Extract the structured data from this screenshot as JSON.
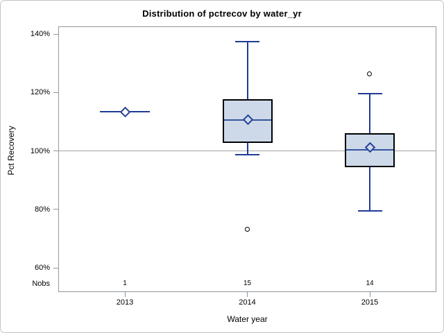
{
  "chart_data": {
    "type": "box",
    "title": "Distribution of pctrecov by water_yr",
    "xlabel": "Water year",
    "ylabel": "Pct Recovery",
    "nobs_label": "Nobs",
    "y_ticks": [
      140,
      120,
      100,
      80,
      60
    ],
    "y_tick_labels": [
      "140%",
      "120%",
      "100%",
      "80%",
      "60%"
    ],
    "ylim": [
      55,
      146
    ],
    "reference_line": 100,
    "categories": [
      "2013",
      "2014",
      "2015"
    ],
    "groups": [
      {
        "label": "2013",
        "nobs": "1",
        "type": "single",
        "value": 113.3,
        "mean": 113.3,
        "outliers": []
      },
      {
        "label": "2014",
        "nobs": "15",
        "type": "box",
        "whisker_low": 98.6,
        "q1": 102.7,
        "median": 110.6,
        "mean": 110.9,
        "q3": 117.7,
        "whisker_high": 137.3,
        "outliers": [
          73
        ]
      },
      {
        "label": "2015",
        "nobs": "14",
        "type": "box",
        "whisker_low": 79.4,
        "q1": 94.4,
        "median": 100.4,
        "mean": 101.2,
        "q3": 106.1,
        "whisker_high": 119.5,
        "outliers": [
          126.3
        ]
      }
    ],
    "colors": {
      "whisker": "#1f3a97",
      "median": "#35549f",
      "mean_marker": "#24409a",
      "box_fill": "#cdd9e9",
      "box_border": "#000000",
      "outlier": "#000000",
      "reference_line": "#a3a3a3",
      "frame": "#8f979e",
      "text": "#000000"
    },
    "legend": null,
    "grid": "reference line at 100% only"
  }
}
